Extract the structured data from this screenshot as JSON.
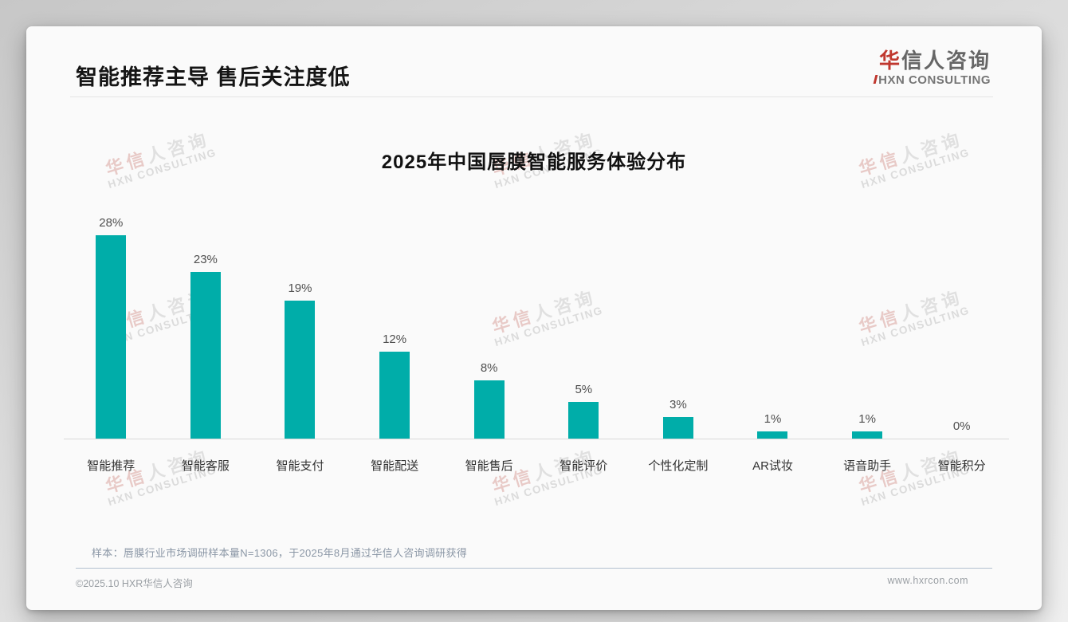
{
  "page": {
    "header_title": "智能推荐主导 售后关注度低",
    "logo": {
      "cn_first": "华",
      "cn_rest": "信人咨询",
      "en": "HXN CONSULTING"
    },
    "sample_note": "样本：唇膜行业市场调研样本量N=1306，于2025年8月通过华信人咨询调研获得",
    "footer_left": "©2025.10 HXR华信人咨询",
    "footer_right": "www.hxrcon.com"
  },
  "watermark": {
    "cn": "华信人咨询",
    "en": "HXN CONSULTING"
  },
  "colors": {
    "bar": "#00ADA9",
    "logo_red": "#C0372E"
  },
  "chart_data": {
    "type": "bar",
    "title": "2025年中国唇膜智能服务体验分布",
    "categories": [
      "智能推荐",
      "智能客服",
      "智能支付",
      "智能配送",
      "智能售后",
      "智能评价",
      "个性化定制",
      "AR试妆",
      "语音助手",
      "智能积分"
    ],
    "values": [
      28,
      23,
      19,
      12,
      8,
      5,
      3,
      1,
      1,
      0
    ],
    "value_labels": [
      "28%",
      "23%",
      "19%",
      "12%",
      "8%",
      "5%",
      "3%",
      "1%",
      "1%",
      "0%"
    ],
    "unit": "%",
    "xlabel": "",
    "ylabel": "",
    "ylim": [
      0,
      30
    ],
    "grid": false,
    "legend": false,
    "bar_color": "#00ADA9"
  }
}
